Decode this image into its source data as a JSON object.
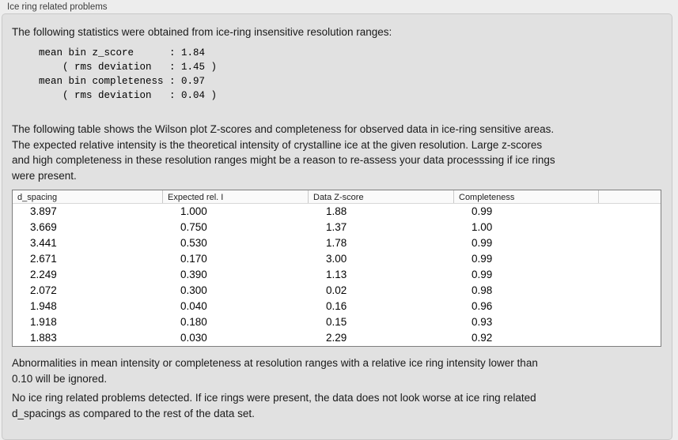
{
  "panel": {
    "title": "Ice ring related problems"
  },
  "colors": {
    "outer_bg": "#ededed",
    "panel_bg": "#e1e1e1",
    "panel_border": "#c9c9c9",
    "text": "#1a1a1a",
    "table_border": "#7e7e7e",
    "table_bg": "#ffffff",
    "header_bg": "#fafafa",
    "header_divider": "#c9c9c9"
  },
  "intro": {
    "text": "The following statistics were obtained from ice-ring insensitive resolution ranges:",
    "stats_lines": [
      "mean bin z_score      : 1.84",
      "    ( rms deviation   : 1.45 )",
      "mean bin completeness : 0.97",
      "    ( rms deviation   : 0.04 )"
    ]
  },
  "table_description": {
    "lines": [
      "The following table shows the Wilson plot Z-scores and completeness for observed data in ice-ring sensitive areas.",
      "The expected relative intensity is the theoretical intensity of crystalline ice at the given resolution. Large z-scores",
      "and high completeness in these resolution ranges might be a reason to re-assess your data processsing if ice rings",
      "were present."
    ]
  },
  "table": {
    "columns": [
      "d_spacing",
      "Expected rel. I",
      "Data Z-score",
      "Completeness",
      ""
    ],
    "rows": [
      [
        "3.897",
        "1.000",
        "1.88",
        "0.99"
      ],
      [
        "3.669",
        "0.750",
        "1.37",
        "1.00"
      ],
      [
        "3.441",
        "0.530",
        "1.78",
        "0.99"
      ],
      [
        "2.671",
        "0.170",
        "3.00",
        "0.99"
      ],
      [
        "2.249",
        "0.390",
        "1.13",
        "0.99"
      ],
      [
        "2.072",
        "0.300",
        "0.02",
        "0.98"
      ],
      [
        "1.948",
        "0.040",
        "0.16",
        "0.96"
      ],
      [
        "1.918",
        "0.180",
        "0.15",
        "0.93"
      ],
      [
        "1.883",
        "0.030",
        "2.29",
        "0.92"
      ]
    ]
  },
  "notes": {
    "ignore_note_lines": [
      "Abnormalities in mean intensity or completeness at resolution ranges with a relative ice ring intensity lower than",
      "0.10 will be ignored."
    ],
    "conclusion_lines": [
      "No ice ring related problems detected. If ice rings were present, the data does not look worse at ice ring related",
      "d_spacings as compared to the rest of the data set."
    ]
  }
}
